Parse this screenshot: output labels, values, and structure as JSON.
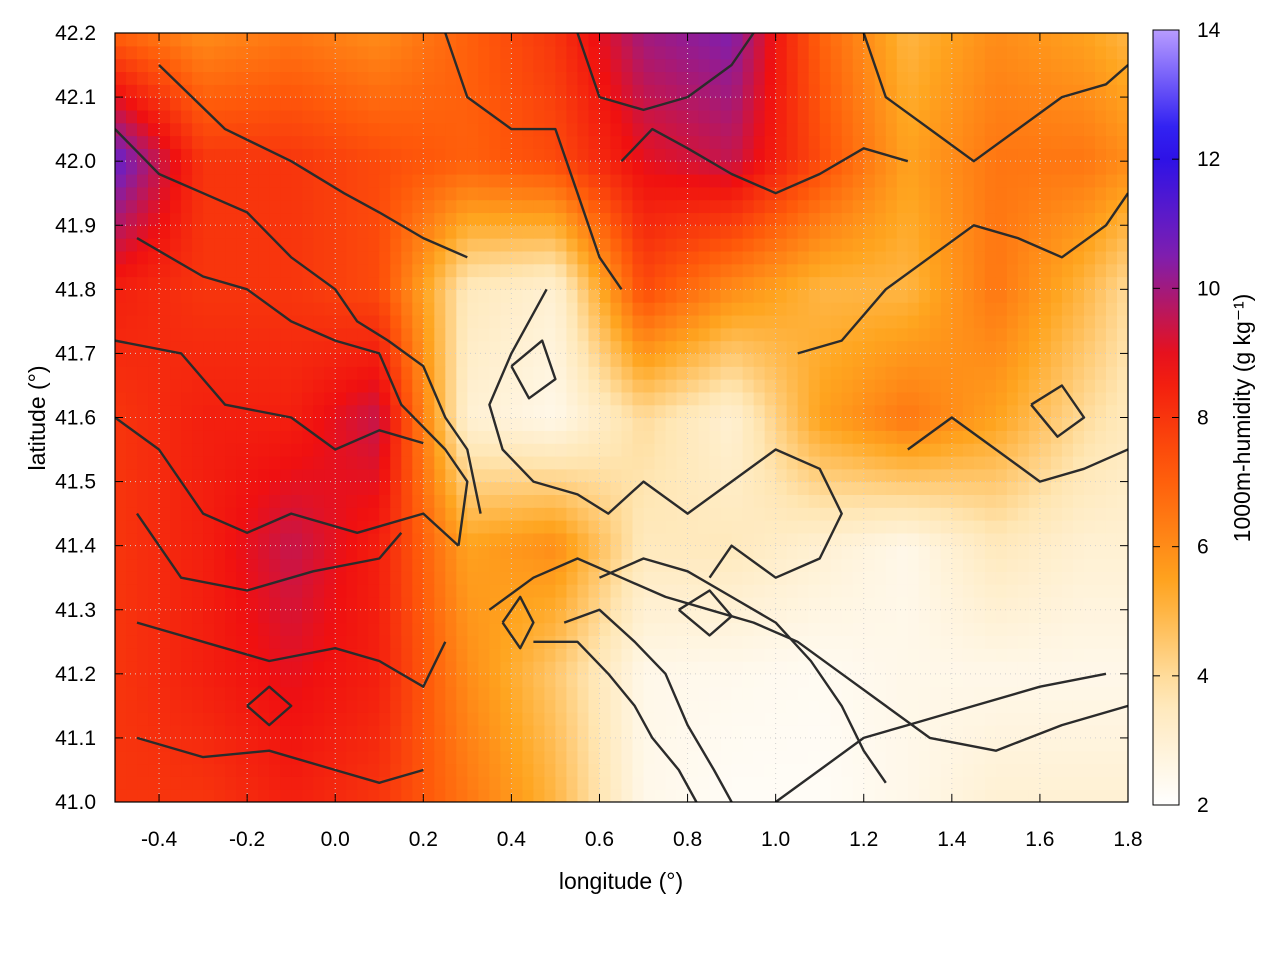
{
  "chart_data": {
    "type": "heatmap",
    "xlabel": "longitude (°)",
    "ylabel": "latitude (°)",
    "colorbar_label": "1000m-humidity (g kg⁻¹)",
    "xlim": [
      -0.5,
      1.8
    ],
    "ylim": [
      41.0,
      42.2
    ],
    "x_ticks": [
      -0.4,
      -0.2,
      0.0,
      0.2,
      0.4,
      0.6,
      0.8,
      1.0,
      1.2,
      1.4,
      1.6,
      1.8
    ],
    "x_tick_labels": [
      "-0.4",
      "-0.2",
      "0.0",
      "0.2",
      "0.4",
      "0.6",
      "0.8",
      "1.0",
      "1.2",
      "1.4",
      "1.6",
      "1.8"
    ],
    "y_ticks": [
      41.0,
      41.1,
      41.2,
      41.3,
      41.4,
      41.5,
      41.6,
      41.7,
      41.8,
      41.9,
      42.0,
      42.1,
      42.2
    ],
    "y_tick_labels": [
      "41.0",
      "41.1",
      "41.2",
      "41.3",
      "41.4",
      "41.5",
      "41.6",
      "41.7",
      "41.8",
      "41.9",
      "42.0",
      "42.1",
      "42.2"
    ],
    "colorbar_range": [
      2,
      14
    ],
    "colorbar_ticks": [
      2,
      4,
      6,
      8,
      10,
      12,
      14
    ],
    "colorbar_tick_labels": [
      "2",
      "4",
      "6",
      "8",
      "10",
      "12",
      "14"
    ],
    "colorscale": [
      "#ffffff",
      "#ffe6b3",
      "#ffa51f",
      "#ff5a0a",
      "#f01010",
      "#7a1fb5",
      "#1f10f0",
      "#b89cff"
    ],
    "grid": true,
    "field_grid": {
      "x": [
        -0.5,
        -0.3,
        -0.1,
        0.1,
        0.3,
        0.5,
        0.7,
        0.9,
        1.1,
        1.3,
        1.5,
        1.7,
        1.8
      ],
      "y": [
        41.0,
        41.2,
        41.4,
        41.6,
        41.8,
        42.0,
        42.2
      ],
      "values": [
        [
          8.0,
          8.0,
          8.5,
          8.0,
          6.5,
          5.0,
          2.5,
          2.2,
          2.2,
          2.5,
          3.0,
          3.0,
          3.0
        ],
        [
          8.0,
          8.5,
          9.0,
          8.5,
          6.0,
          4.5,
          2.5,
          2.4,
          2.3,
          2.5,
          2.5,
          2.5,
          2.5
        ],
        [
          8.0,
          8.5,
          9.5,
          8.5,
          5.5,
          6.0,
          3.5,
          3.5,
          3.0,
          2.5,
          3.5,
          3.0,
          3.0
        ],
        [
          8.0,
          8.5,
          8.5,
          9.5,
          3.0,
          2.5,
          4.0,
          3.0,
          5.5,
          6.5,
          5.5,
          4.0,
          3.5
        ],
        [
          8.5,
          8.0,
          8.0,
          7.5,
          3.5,
          3.0,
          7.5,
          6.0,
          5.0,
          5.0,
          6.5,
          5.0,
          4.0
        ],
        [
          11.0,
          8.0,
          8.0,
          7.5,
          7.0,
          7.5,
          9.0,
          9.5,
          7.5,
          5.5,
          6.5,
          6.5,
          6.0
        ],
        [
          7.0,
          6.0,
          6.5,
          6.0,
          7.0,
          8.0,
          10.0,
          10.5,
          7.0,
          5.0,
          6.0,
          5.5,
          5.0
        ]
      ]
    },
    "contour_lines": [
      [
        [
          -0.45,
          41.1
        ],
        [
          -0.3,
          41.07
        ],
        [
          -0.15,
          41.08
        ],
        [
          0.0,
          41.05
        ],
        [
          0.1,
          41.03
        ],
        [
          0.2,
          41.05
        ]
      ],
      [
        [
          -0.45,
          41.28
        ],
        [
          -0.3,
          41.25
        ],
        [
          -0.15,
          41.22
        ],
        [
          0.0,
          41.24
        ],
        [
          0.1,
          41.22
        ],
        [
          0.2,
          41.18
        ],
        [
          0.25,
          41.25
        ]
      ],
      [
        [
          -0.45,
          41.45
        ],
        [
          -0.35,
          41.35
        ],
        [
          -0.2,
          41.33
        ],
        [
          -0.05,
          41.36
        ],
        [
          0.1,
          41.38
        ],
        [
          0.15,
          41.42
        ]
      ],
      [
        [
          -0.5,
          41.6
        ],
        [
          -0.4,
          41.55
        ],
        [
          -0.3,
          41.45
        ],
        [
          -0.2,
          41.42
        ],
        [
          -0.1,
          41.45
        ],
        [
          0.05,
          41.42
        ],
        [
          0.2,
          41.45
        ],
        [
          0.28,
          41.4
        ]
      ],
      [
        [
          -0.5,
          41.72
        ],
        [
          -0.35,
          41.7
        ],
        [
          -0.25,
          41.62
        ],
        [
          -0.1,
          41.6
        ],
        [
          0.0,
          41.55
        ],
        [
          0.1,
          41.58
        ],
        [
          0.2,
          41.56
        ]
      ],
      [
        [
          -0.45,
          41.88
        ],
        [
          -0.3,
          41.82
        ],
        [
          -0.2,
          41.8
        ],
        [
          -0.1,
          41.75
        ],
        [
          0.0,
          41.72
        ],
        [
          0.1,
          41.7
        ],
        [
          0.15,
          41.62
        ],
        [
          0.25,
          41.55
        ],
        [
          0.3,
          41.5
        ],
        [
          0.28,
          41.4
        ]
      ],
      [
        [
          -0.5,
          42.05
        ],
        [
          -0.4,
          41.98
        ],
        [
          -0.3,
          41.95
        ],
        [
          -0.2,
          41.92
        ],
        [
          -0.1,
          41.85
        ],
        [
          0.0,
          41.8
        ],
        [
          0.05,
          41.75
        ],
        [
          0.12,
          41.72
        ],
        [
          0.2,
          41.68
        ],
        [
          0.25,
          41.6
        ],
        [
          0.3,
          41.55
        ],
        [
          0.33,
          41.45
        ]
      ],
      [
        [
          -0.4,
          42.15
        ],
        [
          -0.25,
          42.05
        ],
        [
          -0.1,
          42.0
        ],
        [
          0.02,
          41.95
        ],
        [
          0.1,
          41.92
        ],
        [
          0.2,
          41.88
        ],
        [
          0.3,
          41.85
        ]
      ],
      [
        [
          0.25,
          42.2
        ],
        [
          0.3,
          42.1
        ],
        [
          0.4,
          42.05
        ],
        [
          0.5,
          42.05
        ],
        [
          0.55,
          41.95
        ],
        [
          0.6,
          41.85
        ],
        [
          0.65,
          41.8
        ]
      ],
      [
        [
          0.55,
          42.2
        ],
        [
          0.6,
          42.1
        ],
        [
          0.7,
          42.08
        ],
        [
          0.8,
          42.1
        ],
        [
          0.9,
          42.15
        ],
        [
          0.95,
          42.2
        ]
      ],
      [
        [
          0.48,
          41.8
        ],
        [
          0.4,
          41.7
        ],
        [
          0.35,
          41.62
        ],
        [
          0.38,
          41.55
        ],
        [
          0.45,
          41.5
        ],
        [
          0.55,
          41.48
        ],
        [
          0.62,
          41.45
        ],
        [
          0.7,
          41.5
        ],
        [
          0.8,
          41.45
        ],
        [
          0.9,
          41.5
        ],
        [
          1.0,
          41.55
        ],
        [
          1.1,
          41.52
        ],
        [
          1.15,
          41.45
        ],
        [
          1.1,
          41.38
        ],
        [
          1.0,
          41.35
        ],
        [
          0.9,
          41.4
        ],
        [
          0.85,
          41.35
        ]
      ],
      [
        [
          0.35,
          41.3
        ],
        [
          0.45,
          41.35
        ],
        [
          0.55,
          41.38
        ],
        [
          0.65,
          41.35
        ],
        [
          0.75,
          41.32
        ],
        [
          0.85,
          41.3
        ],
        [
          0.95,
          41.28
        ],
        [
          1.05,
          41.25
        ],
        [
          1.15,
          41.2
        ],
        [
          1.25,
          41.15
        ],
        [
          1.35,
          41.1
        ],
        [
          1.5,
          41.08
        ],
        [
          1.65,
          41.12
        ],
        [
          1.8,
          41.15
        ]
      ],
      [
        [
          0.45,
          41.25
        ],
        [
          0.55,
          41.25
        ],
        [
          0.62,
          41.2
        ],
        [
          0.68,
          41.15
        ],
        [
          0.72,
          41.1
        ],
        [
          0.78,
          41.05
        ],
        [
          0.82,
          41.0
        ]
      ],
      [
        [
          0.52,
          41.28
        ],
        [
          0.6,
          41.3
        ],
        [
          0.68,
          41.25
        ],
        [
          0.75,
          41.2
        ],
        [
          0.8,
          41.12
        ],
        [
          0.86,
          41.05
        ],
        [
          0.9,
          41.0
        ]
      ],
      [
        [
          0.6,
          41.35
        ],
        [
          0.7,
          41.38
        ],
        [
          0.8,
          41.36
        ],
        [
          0.9,
          41.32
        ],
        [
          1.0,
          41.28
        ],
        [
          1.08,
          41.22
        ],
        [
          1.15,
          41.15
        ],
        [
          1.2,
          41.08
        ],
        [
          1.25,
          41.03
        ]
      ],
      [
        [
          1.0,
          41.0
        ],
        [
          1.1,
          41.05
        ],
        [
          1.2,
          41.1
        ],
        [
          1.3,
          41.12
        ],
        [
          1.45,
          41.15
        ],
        [
          1.6,
          41.18
        ],
        [
          1.75,
          41.2
        ]
      ],
      [
        [
          1.05,
          41.7
        ],
        [
          1.15,
          41.72
        ],
        [
          1.25,
          41.8
        ],
        [
          1.35,
          41.85
        ],
        [
          1.45,
          41.9
        ],
        [
          1.55,
          41.88
        ],
        [
          1.65,
          41.85
        ],
        [
          1.75,
          41.9
        ],
        [
          1.8,
          41.95
        ]
      ],
      [
        [
          1.2,
          42.2
        ],
        [
          1.25,
          42.1
        ],
        [
          1.35,
          42.05
        ],
        [
          1.45,
          42.0
        ],
        [
          1.55,
          42.05
        ],
        [
          1.65,
          42.1
        ],
        [
          1.75,
          42.12
        ],
        [
          1.8,
          42.15
        ]
      ],
      [
        [
          1.3,
          41.55
        ],
        [
          1.4,
          41.6
        ],
        [
          1.5,
          41.55
        ],
        [
          1.6,
          41.5
        ],
        [
          1.7,
          41.52
        ],
        [
          1.8,
          41.55
        ]
      ],
      [
        [
          0.65,
          42.0
        ],
        [
          0.72,
          42.05
        ],
        [
          0.8,
          42.02
        ],
        [
          0.9,
          41.98
        ],
        [
          1.0,
          41.95
        ],
        [
          1.1,
          41.98
        ],
        [
          1.2,
          42.02
        ],
        [
          1.3,
          42.0
        ]
      ],
      [
        [
          -0.2,
          41.15
        ],
        [
          -0.15,
          41.12
        ],
        [
          -0.1,
          41.15
        ],
        [
          -0.15,
          41.18
        ],
        [
          -0.2,
          41.15
        ]
      ],
      [
        [
          0.38,
          41.28
        ],
        [
          0.42,
          41.32
        ],
        [
          0.45,
          41.28
        ],
        [
          0.42,
          41.24
        ],
        [
          0.38,
          41.28
        ]
      ],
      [
        [
          0.78,
          41.3
        ],
        [
          0.85,
          41.33
        ],
        [
          0.9,
          41.29
        ],
        [
          0.85,
          41.26
        ],
        [
          0.78,
          41.3
        ]
      ],
      [
        [
          1.58,
          41.62
        ],
        [
          1.65,
          41.65
        ],
        [
          1.7,
          41.6
        ],
        [
          1.64,
          41.57
        ],
        [
          1.58,
          41.62
        ]
      ],
      [
        [
          0.4,
          41.68
        ],
        [
          0.47,
          41.72
        ],
        [
          0.5,
          41.66
        ],
        [
          0.44,
          41.63
        ],
        [
          0.4,
          41.68
        ]
      ]
    ]
  }
}
